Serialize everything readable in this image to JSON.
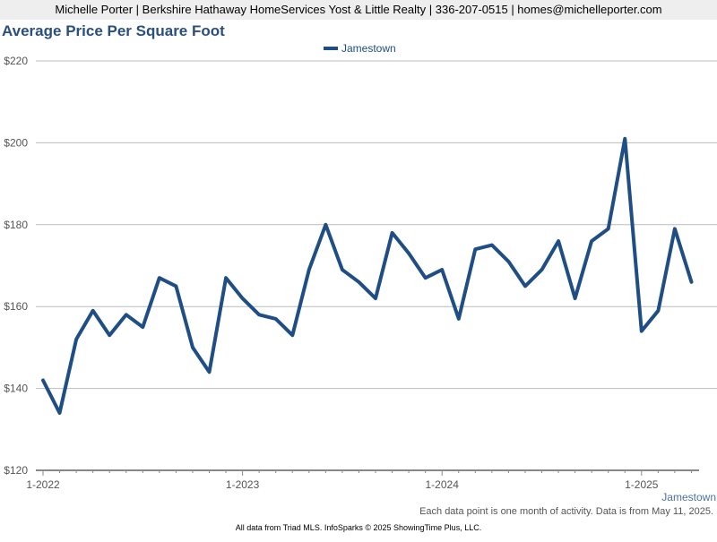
{
  "header": {
    "contact": "Michelle Porter | Berkshire Hathaway HomeServices Yost & Little Realty | 336-207-0515 | homes@michelleporter.com"
  },
  "footnote": "Each data point is one month of activity. Data is from May 11, 2025.",
  "footer": "All data from Triad MLS. InfoSparks © 2025 ShowingTime Plus, LLC.",
  "colors": {
    "series": "#1f4e85",
    "grid": "#bbbbbb",
    "axis": "#888888",
    "title": "#2b4f7c"
  },
  "chart_data": {
    "type": "line",
    "title": "Average Price Per Square Foot",
    "xlabel": "",
    "ylabel": "",
    "ylim": [
      120,
      220
    ],
    "yticks": [
      120,
      140,
      160,
      180,
      200,
      220
    ],
    "ytick_labels": [
      "$120",
      "$140",
      "$160",
      "$180",
      "$200",
      "$220"
    ],
    "xtick_labels": [
      "1-2022",
      "1-2023",
      "1-2024",
      "1-2025"
    ],
    "legend_position": "top-center",
    "end_label": "Jamestown",
    "grid": true,
    "x": [
      "2022-01",
      "2022-02",
      "2022-03",
      "2022-04",
      "2022-05",
      "2022-06",
      "2022-07",
      "2022-08",
      "2022-09",
      "2022-10",
      "2022-11",
      "2022-12",
      "2023-01",
      "2023-02",
      "2023-03",
      "2023-04",
      "2023-05",
      "2023-06",
      "2023-07",
      "2023-08",
      "2023-09",
      "2023-10",
      "2023-11",
      "2023-12",
      "2024-01",
      "2024-02",
      "2024-03",
      "2024-04",
      "2024-05",
      "2024-06",
      "2024-07",
      "2024-08",
      "2024-09",
      "2024-10",
      "2024-11",
      "2024-12",
      "2025-01",
      "2025-02",
      "2025-03",
      "2025-04"
    ],
    "series": [
      {
        "name": "Jamestown",
        "values": [
          142,
          134,
          152,
          159,
          153,
          158,
          155,
          167,
          165,
          150,
          144,
          167,
          162,
          158,
          157,
          153,
          169,
          180,
          169,
          166,
          162,
          178,
          173,
          167,
          169,
          157,
          174,
          175,
          171,
          165,
          169,
          176,
          162,
          176,
          179,
          201,
          154,
          159,
          179,
          166
        ]
      }
    ]
  }
}
